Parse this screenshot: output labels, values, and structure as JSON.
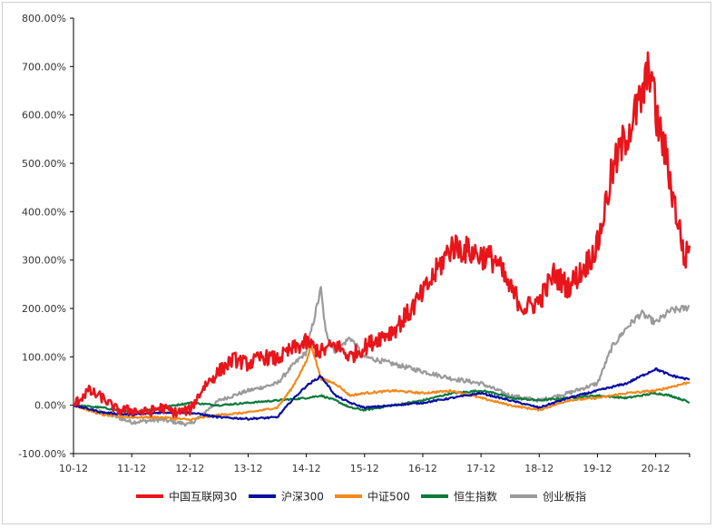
{
  "chart_data": {
    "type": "line",
    "title": "",
    "xlabel": "",
    "ylabel": "",
    "ylim": [
      -100,
      800
    ],
    "y_ticks": [
      -100,
      0,
      100,
      200,
      300,
      400,
      500,
      600,
      700,
      800
    ],
    "y_tick_labels": [
      "-100.00%",
      "0.00%",
      "100.00%",
      "200.00%",
      "300.00%",
      "400.00%",
      "500.00%",
      "600.00%",
      "700.00%",
      "800.00%"
    ],
    "x_ticks": [
      "10-12",
      "11-12",
      "12-12",
      "13-12",
      "14-12",
      "15-12",
      "16-12",
      "17-12",
      "18-12",
      "19-12",
      "20-12"
    ],
    "grid": false,
    "legend_position": "bottom",
    "series": [
      {
        "name": "中国互联网30",
        "color": "#e8151b",
        "points": [
          [
            "10-12",
            0
          ],
          [
            "11-03",
            30
          ],
          [
            "11-06",
            15
          ],
          [
            "11-09",
            -10
          ],
          [
            "11-12",
            -10
          ],
          [
            "12-03",
            -15
          ],
          [
            "12-06",
            -5
          ],
          [
            "12-09",
            -15
          ],
          [
            "12-12",
            -10
          ],
          [
            "13-03",
            40
          ],
          [
            "13-06",
            70
          ],
          [
            "13-09",
            95
          ],
          [
            "13-12",
            85
          ],
          [
            "14-03",
            100
          ],
          [
            "14-06",
            95
          ],
          [
            "14-09",
            115
          ],
          [
            "14-12",
            130
          ],
          [
            "15-03",
            110
          ],
          [
            "15-06",
            125
          ],
          [
            "15-09",
            100
          ],
          [
            "15-12",
            120
          ],
          [
            "16-03",
            140
          ],
          [
            "16-06",
            155
          ],
          [
            "16-09",
            190
          ],
          [
            "16-12",
            230
          ],
          [
            "17-03",
            280
          ],
          [
            "17-06",
            330
          ],
          [
            "17-09",
            320
          ],
          [
            "17-12",
            310
          ],
          [
            "18-03",
            300
          ],
          [
            "18-06",
            240
          ],
          [
            "18-09",
            200
          ],
          [
            "18-12",
            215
          ],
          [
            "19-03",
            270
          ],
          [
            "19-06",
            245
          ],
          [
            "19-09",
            280
          ],
          [
            "19-12",
            330
          ],
          [
            "20-03",
            480
          ],
          [
            "20-06",
            560
          ],
          [
            "20-09",
            630
          ],
          [
            "20-11",
            705
          ],
          [
            "20-12",
            600
          ],
          [
            "21-02",
            520
          ],
          [
            "21-04",
            410
          ],
          [
            "21-05",
            360
          ],
          [
            "21-06",
            300
          ],
          [
            "21-07",
            330
          ]
        ]
      },
      {
        "name": "沪深300",
        "color": "#0b0fa0",
        "points": [
          [
            "10-12",
            0
          ],
          [
            "11-06",
            -15
          ],
          [
            "11-12",
            -20
          ],
          [
            "12-06",
            -15
          ],
          [
            "12-12",
            -15
          ],
          [
            "13-06",
            -25
          ],
          [
            "13-12",
            -28
          ],
          [
            "14-06",
            -25
          ],
          [
            "14-09",
            10
          ],
          [
            "14-12",
            40
          ],
          [
            "15-03",
            60
          ],
          [
            "15-06",
            20
          ],
          [
            "15-09",
            5
          ],
          [
            "15-12",
            -5
          ],
          [
            "16-06",
            0
          ],
          [
            "16-12",
            5
          ],
          [
            "17-06",
            15
          ],
          [
            "17-12",
            25
          ],
          [
            "18-06",
            10
          ],
          [
            "18-12",
            -5
          ],
          [
            "19-06",
            15
          ],
          [
            "19-12",
            30
          ],
          [
            "20-06",
            45
          ],
          [
            "20-09",
            60
          ],
          [
            "20-12",
            75
          ],
          [
            "21-03",
            62
          ],
          [
            "21-06",
            55
          ],
          [
            "21-07",
            53
          ]
        ]
      },
      {
        "name": "中证500",
        "color": "#f2891c",
        "points": [
          [
            "10-12",
            0
          ],
          [
            "11-06",
            -20
          ],
          [
            "11-12",
            -25
          ],
          [
            "12-06",
            -25
          ],
          [
            "12-12",
            -30
          ],
          [
            "13-06",
            -20
          ],
          [
            "13-12",
            -15
          ],
          [
            "14-06",
            -5
          ],
          [
            "14-09",
            35
          ],
          [
            "14-12",
            90
          ],
          [
            "15-01",
            125
          ],
          [
            "15-03",
            55
          ],
          [
            "15-06",
            45
          ],
          [
            "15-09",
            20
          ],
          [
            "15-12",
            25
          ],
          [
            "16-06",
            30
          ],
          [
            "16-12",
            25
          ],
          [
            "17-06",
            30
          ],
          [
            "17-12",
            15
          ],
          [
            "18-06",
            0
          ],
          [
            "18-12",
            -10
          ],
          [
            "19-06",
            10
          ],
          [
            "19-12",
            15
          ],
          [
            "20-06",
            25
          ],
          [
            "20-12",
            30
          ],
          [
            "21-06",
            45
          ],
          [
            "21-07",
            48
          ]
        ]
      },
      {
        "name": "恒生指数",
        "color": "#0e7a3c",
        "points": [
          [
            "10-12",
            0
          ],
          [
            "11-06",
            -5
          ],
          [
            "11-12",
            -15
          ],
          [
            "12-06",
            -5
          ],
          [
            "12-12",
            5
          ],
          [
            "13-06",
            0
          ],
          [
            "13-12",
            5
          ],
          [
            "14-06",
            10
          ],
          [
            "14-12",
            15
          ],
          [
            "15-03",
            20
          ],
          [
            "15-06",
            10
          ],
          [
            "15-09",
            -5
          ],
          [
            "15-12",
            -10
          ],
          [
            "16-06",
            0
          ],
          [
            "16-12",
            10
          ],
          [
            "17-06",
            25
          ],
          [
            "17-12",
            30
          ],
          [
            "18-03",
            25
          ],
          [
            "18-06",
            15
          ],
          [
            "18-12",
            10
          ],
          [
            "19-06",
            15
          ],
          [
            "19-12",
            20
          ],
          [
            "20-06",
            15
          ],
          [
            "20-12",
            25
          ],
          [
            "21-03",
            20
          ],
          [
            "21-06",
            10
          ],
          [
            "21-07",
            5
          ]
        ]
      },
      {
        "name": "创业板指",
        "color": "#9a9a9a",
        "points": [
          [
            "10-12",
            0
          ],
          [
            "11-06",
            -15
          ],
          [
            "11-12",
            -35
          ],
          [
            "12-06",
            -30
          ],
          [
            "12-12",
            -40
          ],
          [
            "13-06",
            10
          ],
          [
            "13-12",
            30
          ],
          [
            "14-06",
            45
          ],
          [
            "14-09",
            80
          ],
          [
            "14-12",
            110
          ],
          [
            "15-03",
            240
          ],
          [
            "15-04",
            150
          ],
          [
            "15-06",
            110
          ],
          [
            "15-09",
            140
          ],
          [
            "15-12",
            100
          ],
          [
            "16-06",
            85
          ],
          [
            "16-12",
            70
          ],
          [
            "17-06",
            55
          ],
          [
            "17-12",
            45
          ],
          [
            "18-06",
            20
          ],
          [
            "18-12",
            10
          ],
          [
            "19-06",
            25
          ],
          [
            "19-12",
            45
          ],
          [
            "20-03",
            120
          ],
          [
            "20-06",
            160
          ],
          [
            "20-09",
            190
          ],
          [
            "20-12",
            170
          ],
          [
            "21-03",
            195
          ],
          [
            "21-06",
            200
          ],
          [
            "21-07",
            205
          ]
        ]
      }
    ]
  }
}
